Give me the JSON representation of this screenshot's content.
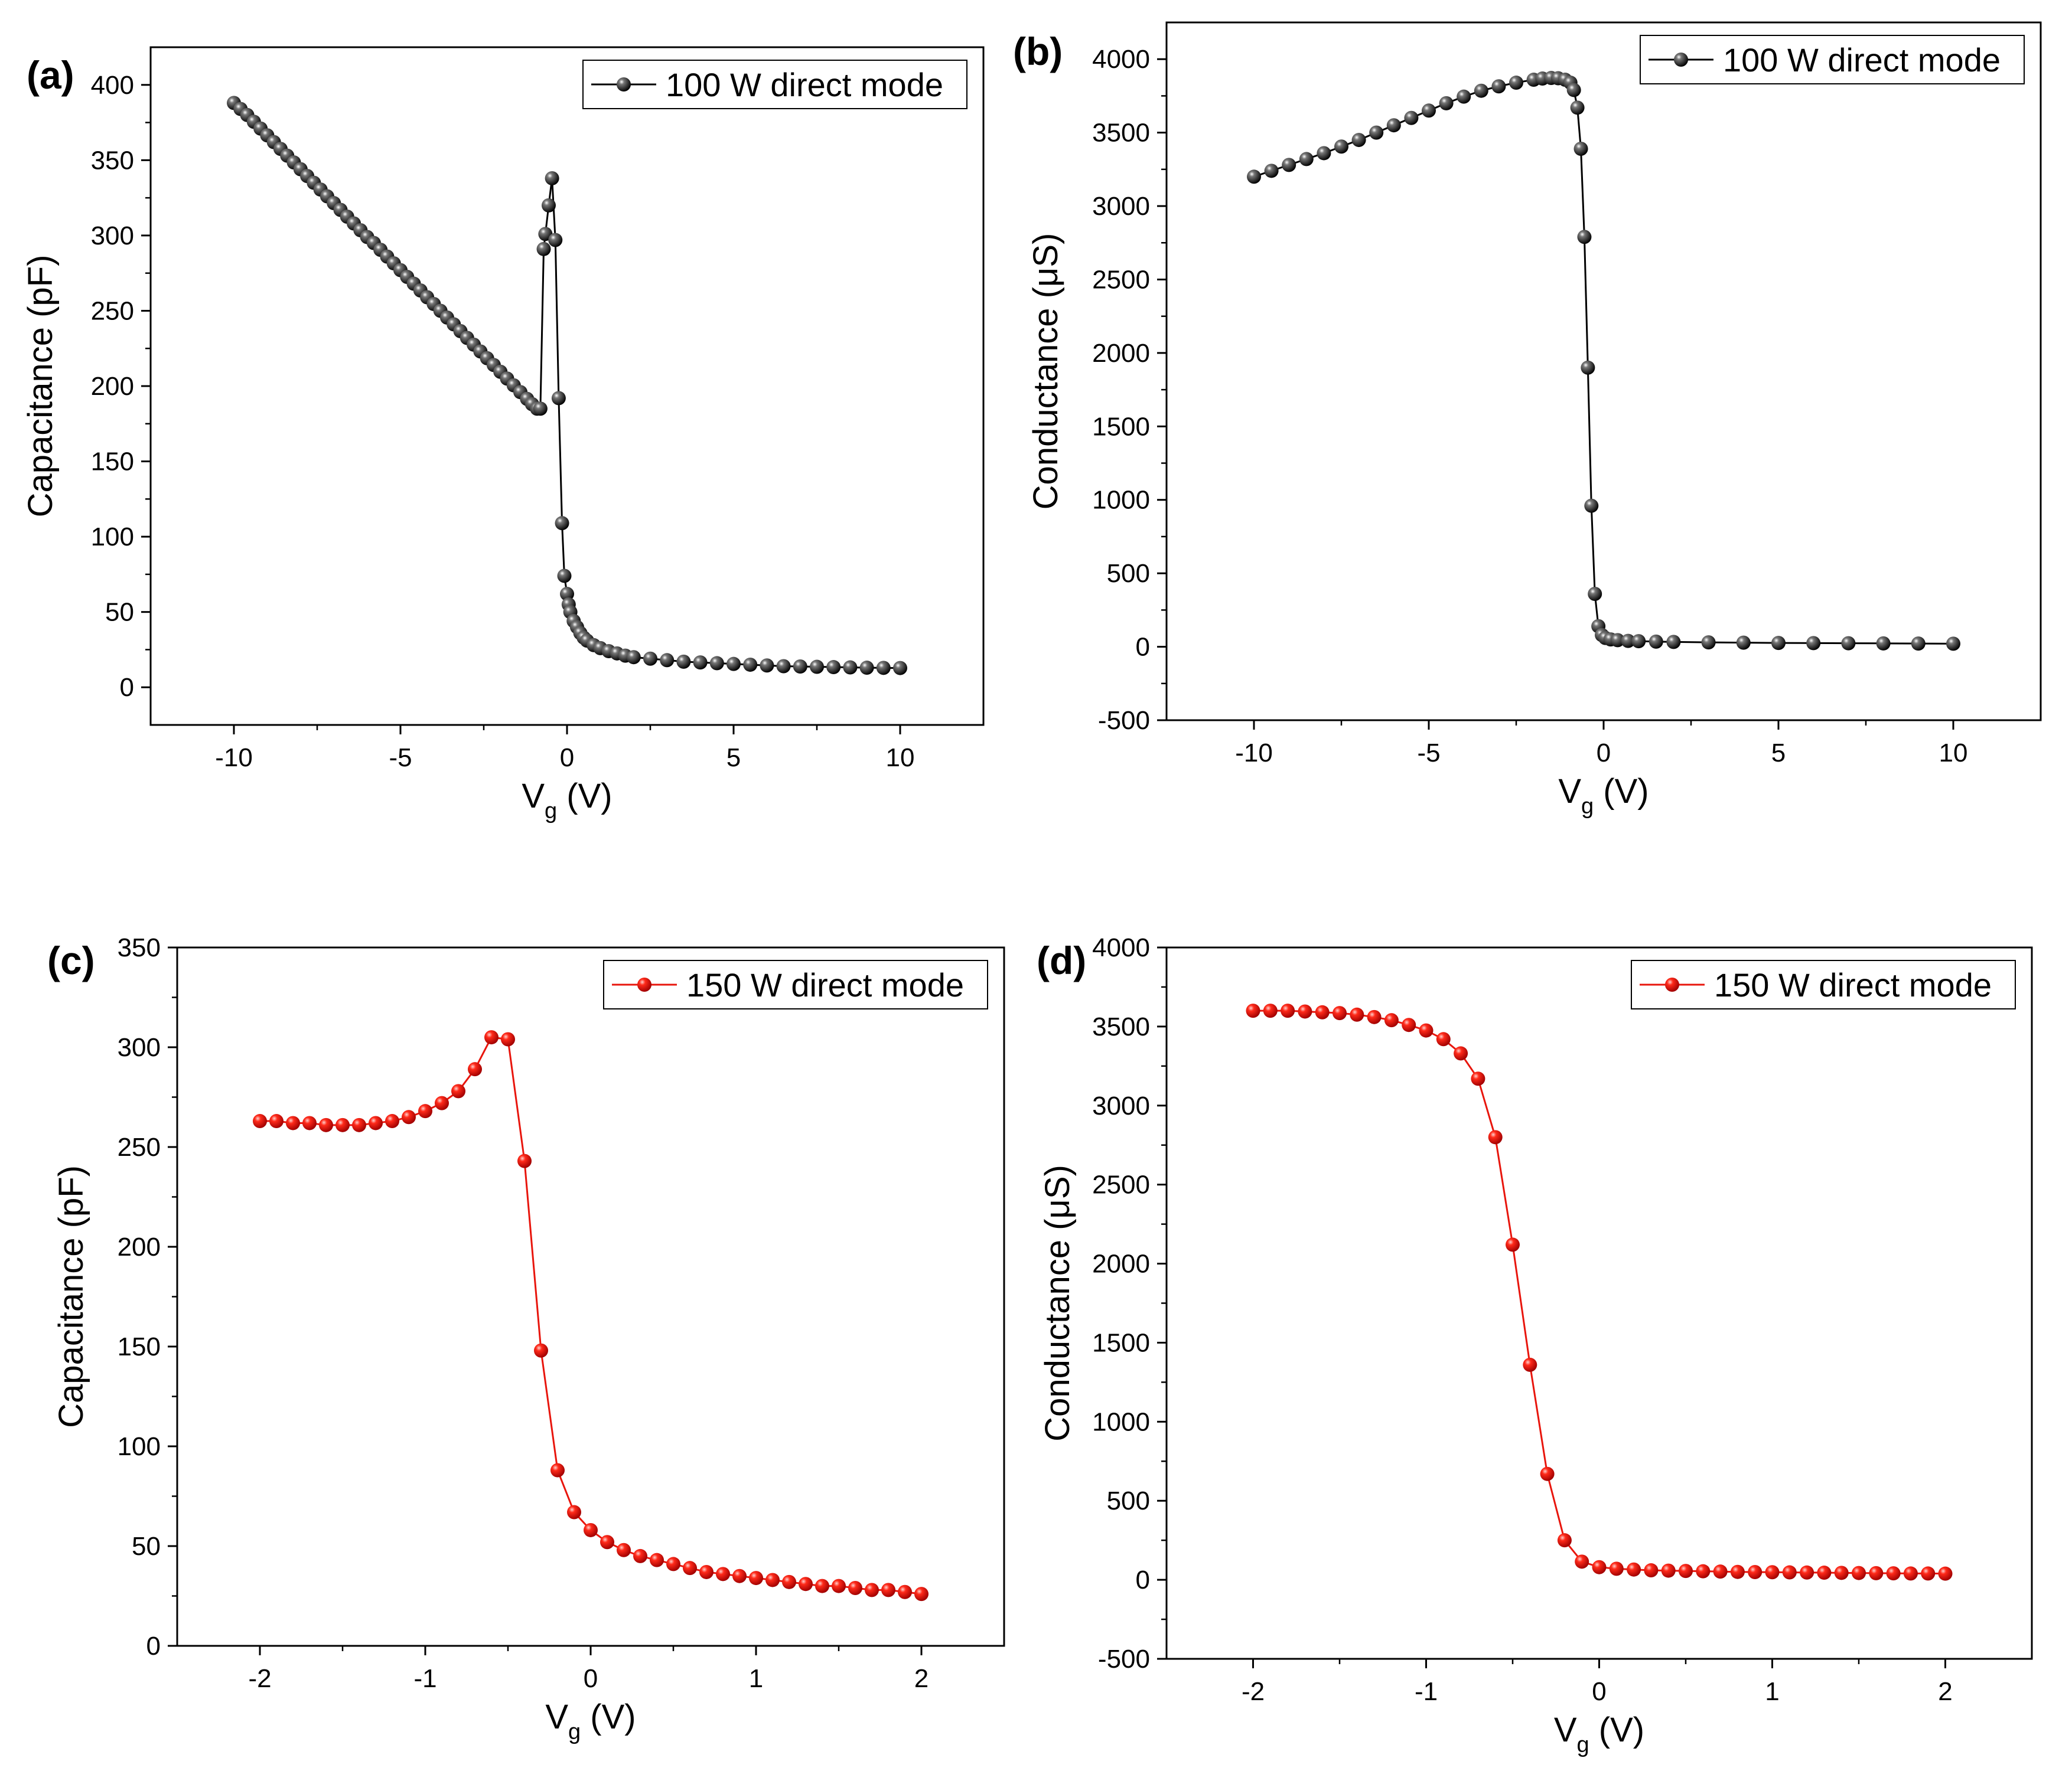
{
  "chart_data": [
    {
      "id": "a",
      "type": "line",
      "panel_label": "(a)",
      "xlabel": "V",
      "xlabel_sub": "g",
      "xlabel_unit": "(V)",
      "ylabel": "Capacitance (pF)",
      "xlim": [
        -12.5,
        12.5
      ],
      "ylim": [
        -25,
        425
      ],
      "xticks": [
        -10,
        -5,
        0,
        5,
        10
      ],
      "xtick_labels": [
        "-10",
        "-5",
        "0",
        "5",
        "10"
      ],
      "yticks": [
        0,
        50,
        100,
        150,
        200,
        250,
        300,
        350,
        400
      ],
      "ytick_labels": [
        "0",
        "50",
        "100",
        "150",
        "200",
        "250",
        "300",
        "350",
        "400"
      ],
      "legend": "100 W direct mode",
      "legend_position": "top-right",
      "series": [
        {
          "name": "100 W direct mode",
          "color": "#000000",
          "marker_color": "#1a1a1a",
          "x": [
            -10,
            -9.8,
            -9.6,
            -9.4,
            -9.2,
            -9,
            -8.8,
            -8.6,
            -8.4,
            -8.2,
            -8,
            -7.8,
            -7.6,
            -7.4,
            -7.2,
            -7,
            -6.8,
            -6.6,
            -6.4,
            -6.2,
            -6,
            -5.8,
            -5.6,
            -5.4,
            -5.2,
            -5,
            -4.8,
            -4.6,
            -4.4,
            -4.2,
            -4,
            -3.8,
            -3.6,
            -3.4,
            -3.2,
            -3,
            -2.8,
            -2.6,
            -2.4,
            -2.2,
            -2,
            -1.8,
            -1.6,
            -1.4,
            -1.2,
            -1.05,
            -0.9,
            -0.8,
            -0.7,
            -0.65,
            -0.55,
            -0.45,
            -0.35,
            -0.25,
            -0.15,
            -0.08,
            0,
            0.05,
            0.1,
            0.2,
            0.3,
            0.4,
            0.5,
            0.6,
            0.8,
            1,
            1.25,
            1.5,
            1.75,
            2,
            2.5,
            3,
            3.5,
            4,
            4.5,
            5,
            5.5,
            6,
            6.5,
            7,
            7.5,
            8,
            8.5,
            9,
            9.5,
            10
          ],
          "y": [
            388,
            384,
            380,
            375.5,
            371,
            366.5,
            362,
            357.5,
            353,
            348.5,
            344,
            339.5,
            335,
            330.5,
            326,
            321.5,
            317,
            312.5,
            308,
            303.5,
            299,
            295,
            290.5,
            286,
            281.5,
            277,
            272.5,
            268,
            263.5,
            259,
            254.5,
            250,
            245.5,
            241,
            236.5,
            232,
            227.5,
            223,
            218.5,
            214,
            209.5,
            205,
            200.5,
            196,
            191.5,
            188,
            185,
            185,
            291,
            301,
            320,
            338,
            297,
            192,
            109,
            74,
            62,
            55,
            50,
            44,
            40,
            36,
            33,
            31,
            28,
            26,
            24,
            22.5,
            21,
            20,
            19,
            18,
            17,
            16.5,
            16,
            15.5,
            15,
            14.5,
            14,
            13.8,
            13.6,
            13.4,
            13.2,
            13,
            12.9,
            12.8
          ]
        }
      ]
    },
    {
      "id": "b",
      "type": "line",
      "panel_label": "(b)",
      "xlabel": "V",
      "xlabel_sub": "g",
      "xlabel_unit": "(V)",
      "ylabel": "Conductance (μS)",
      "xlim": [
        -12.5,
        12.5
      ],
      "ylim": [
        -500,
        4250
      ],
      "xticks": [
        -10,
        -5,
        0,
        5,
        10
      ],
      "xtick_labels": [
        "-10",
        "-5",
        "0",
        "5",
        "10"
      ],
      "yticks": [
        -500,
        0,
        500,
        1000,
        1500,
        2000,
        2500,
        3000,
        3500,
        4000
      ],
      "ytick_labels": [
        "-500",
        "0",
        "500",
        "1000",
        "1500",
        "2000",
        "2500",
        "3000",
        "3500",
        "4000"
      ],
      "legend": "100 W direct mode",
      "legend_position": "top-right",
      "series": [
        {
          "name": "100 W direct mode",
          "color": "#000000",
          "marker_color": "#1a1a1a",
          "x": [
            -10,
            -9.5,
            -9,
            -8.5,
            -8,
            -7.5,
            -7,
            -6.5,
            -6,
            -5.5,
            -5,
            -4.5,
            -4,
            -3.5,
            -3,
            -2.5,
            -2,
            -1.75,
            -1.5,
            -1.3,
            -1.1,
            -0.95,
            -0.85,
            -0.75,
            -0.65,
            -0.55,
            -0.45,
            -0.35,
            -0.25,
            -0.15,
            -0.05,
            0.05,
            0.2,
            0.4,
            0.7,
            1,
            1.5,
            2,
            3,
            4,
            5,
            6,
            7,
            8,
            9,
            10
          ],
          "y": [
            3200,
            3240,
            3280,
            3320,
            3360,
            3405,
            3450,
            3500,
            3550,
            3600,
            3650,
            3700,
            3745,
            3785,
            3815,
            3840,
            3860,
            3868,
            3872,
            3870,
            3860,
            3840,
            3790,
            3670,
            3390,
            2790,
            1900,
            960,
            360,
            140,
            80,
            60,
            50,
            45,
            40,
            38,
            35,
            33,
            30,
            28,
            26,
            25,
            24,
            23,
            22,
            21
          ]
        }
      ]
    },
    {
      "id": "c",
      "type": "line",
      "panel_label": "(c)",
      "xlabel": "V",
      "xlabel_sub": "g",
      "xlabel_unit": "(V)",
      "ylabel": "Capacitance (pF)",
      "xlim": [
        -2.5,
        2.5
      ],
      "ylim": [
        0,
        350
      ],
      "xticks": [
        -2,
        -1,
        0,
        1,
        2
      ],
      "xtick_labels": [
        "-2",
        "-1",
        "0",
        "1",
        "2"
      ],
      "yticks": [
        0,
        50,
        100,
        150,
        200,
        250,
        300,
        350
      ],
      "ytick_labels": [
        "0",
        "50",
        "100",
        "150",
        "200",
        "250",
        "300",
        "350"
      ],
      "legend": "150 W direct mode",
      "legend_position": "top-right",
      "series": [
        {
          "name": "150 W direct mode",
          "color": "#e8150c",
          "marker_color": "#ff2a1a",
          "x": [
            -2,
            -1.9,
            -1.8,
            -1.7,
            -1.6,
            -1.5,
            -1.4,
            -1.3,
            -1.2,
            -1.1,
            -1,
            -0.9,
            -0.8,
            -0.7,
            -0.6,
            -0.5,
            -0.4,
            -0.3,
            -0.2,
            -0.1,
            0,
            0.1,
            0.2,
            0.3,
            0.4,
            0.5,
            0.6,
            0.7,
            0.8,
            0.9,
            1,
            1.1,
            1.2,
            1.3,
            1.4,
            1.5,
            1.6,
            1.7,
            1.8,
            1.9,
            2
          ],
          "y": [
            263,
            263,
            262,
            262,
            261,
            261,
            261,
            262,
            263,
            265,
            268,
            272,
            278,
            289,
            305,
            304,
            243,
            148,
            88,
            67,
            58,
            52,
            48,
            45,
            43,
            41,
            39,
            37,
            36,
            35,
            34,
            33,
            32,
            31,
            30,
            30,
            29,
            28,
            28,
            27,
            26
          ]
        }
      ]
    },
    {
      "id": "d",
      "type": "line",
      "panel_label": "(d)",
      "xlabel": "V",
      "xlabel_sub": "g",
      "xlabel_unit": "(V)",
      "ylabel": "Conductance (μS)",
      "xlim": [
        -2.5,
        2.5
      ],
      "ylim": [
        -500,
        4000
      ],
      "xticks": [
        -2,
        -1,
        0,
        1,
        2
      ],
      "xtick_labels": [
        "-2",
        "-1",
        "0",
        "1",
        "2"
      ],
      "yticks": [
        -500,
        0,
        500,
        1000,
        1500,
        2000,
        2500,
        3000,
        3500,
        4000
      ],
      "ytick_labels": [
        "-500",
        "0",
        "500",
        "1000",
        "1500",
        "2000",
        "2500",
        "3000",
        "3500",
        "4000"
      ],
      "legend": "150 W direct mode",
      "legend_position": "top-right",
      "series": [
        {
          "name": "150 W direct mode",
          "color": "#e8150c",
          "marker_color": "#ff2a1a",
          "x": [
            -2,
            -1.9,
            -1.8,
            -1.7,
            -1.6,
            -1.5,
            -1.4,
            -1.3,
            -1.2,
            -1.1,
            -1,
            -0.9,
            -0.8,
            -0.7,
            -0.6,
            -0.5,
            -0.4,
            -0.3,
            -0.2,
            -0.1,
            0,
            0.1,
            0.2,
            0.3,
            0.4,
            0.5,
            0.6,
            0.7,
            0.8,
            0.9,
            1,
            1.1,
            1.2,
            1.3,
            1.4,
            1.5,
            1.6,
            1.7,
            1.8,
            1.9,
            2
          ],
          "y": [
            3600,
            3600,
            3600,
            3595,
            3590,
            3585,
            3575,
            3560,
            3540,
            3510,
            3475,
            3420,
            3330,
            3170,
            2800,
            2120,
            1360,
            670,
            250,
            115,
            80,
            70,
            65,
            60,
            58,
            56,
            54,
            52,
            50,
            49,
            48,
            47,
            46,
            45,
            44,
            43,
            42,
            41,
            40,
            40,
            39
          ]
        }
      ]
    }
  ]
}
